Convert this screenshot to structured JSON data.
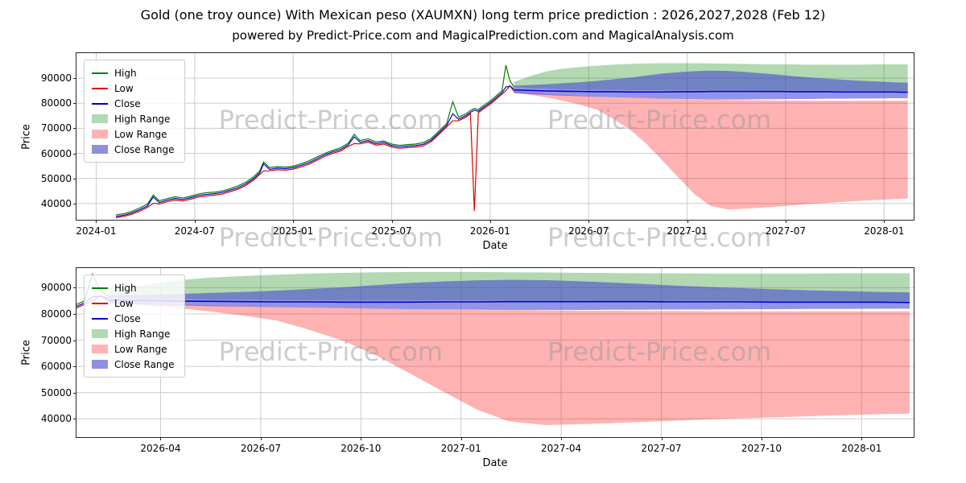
{
  "header": {
    "title": "Gold (one troy ounce) With Mexican peso (XAUMXN) long term price prediction : 2026,2027,2028 (Feb 12)",
    "subtitle": "powered by Predict-Price.com and MagicalPrediction.com and MagicalAnalysis.com"
  },
  "watermark": "Predict-Price.com",
  "chart_data": {
    "type": "line",
    "legend": [
      {
        "label": "High",
        "swatch": "line",
        "color": "#008000"
      },
      {
        "label": "Low",
        "swatch": "line",
        "color": "#dd0000"
      },
      {
        "label": "Close",
        "swatch": "line",
        "color": "#0000cc"
      },
      {
        "label": "High Range",
        "swatch": "patch",
        "color": "#b2d9b2"
      },
      {
        "label": "Low Range",
        "swatch": "patch",
        "color": "#ffb2b2"
      },
      {
        "label": "Close Range",
        "swatch": "patch",
        "color": "#8f8fe0"
      }
    ],
    "colors": {
      "high_line": "#008000",
      "low_line": "#dd0000",
      "close_line": "#0000cc",
      "high_band": "rgba(0,128,0,0.3)",
      "low_band": "rgba(255,0,0,0.3)",
      "close_band": "rgba(60,60,210,0.55)",
      "grid": "#cccccc",
      "axis": "#262626"
    },
    "history": {
      "t": [
        2024.1,
        2024.14,
        2024.18,
        2024.22,
        2024.26,
        2024.29,
        2024.32,
        2024.36,
        2024.4,
        2024.44,
        2024.48,
        2024.52,
        2024.56,
        2024.6,
        2024.64,
        2024.68,
        2024.72,
        2024.76,
        2024.8,
        2024.83,
        2024.85,
        2024.88,
        2024.92,
        2024.96,
        2025.0,
        2025.04,
        2025.08,
        2025.12,
        2025.16,
        2025.2,
        2025.24,
        2025.28,
        2025.31,
        2025.34,
        2025.38,
        2025.42,
        2025.46,
        2025.5,
        2025.54,
        2025.58,
        2025.62,
        2025.66,
        2025.7,
        2025.74,
        2025.78,
        2025.81,
        2025.84,
        2025.88,
        2025.9,
        2025.92,
        2025.94,
        2025.97,
        2026.0,
        2026.03,
        2026.06,
        2026.08,
        2026.1,
        2026.12
      ],
      "high": [
        35400,
        35900,
        36800,
        38200,
        39700,
        43400,
        41100,
        41900,
        42700,
        42200,
        42900,
        43800,
        44300,
        44500,
        45000,
        45900,
        47000,
        48500,
        50700,
        52900,
        56600,
        54300,
        54700,
        54500,
        54900,
        55800,
        57000,
        58500,
        60000,
        61200,
        62200,
        64100,
        67600,
        65100,
        65800,
        64600,
        64900,
        63700,
        63200,
        63500,
        63700,
        64300,
        65900,
        68900,
        72000,
        80600,
        74400,
        75900,
        77100,
        77900,
        77500,
        79300,
        80900,
        82900,
        85000,
        95200,
        89100,
        86600
      ],
      "low": [
        34300,
        34800,
        35700,
        36900,
        38400,
        40100,
        39800,
        40700,
        41400,
        41000,
        41700,
        42600,
        43000,
        43300,
        43800,
        44700,
        45700,
        47200,
        49400,
        51600,
        53000,
        53000,
        53500,
        53300,
        53700,
        54600,
        55700,
        57200,
        58800,
        60000,
        60900,
        62800,
        63900,
        63800,
        64500,
        63300,
        63700,
        62500,
        62000,
        62300,
        62500,
        63000,
        64600,
        67600,
        70600,
        73000,
        73000,
        74600,
        75800,
        37000,
        76200,
        78000,
        79600,
        81600,
        83600,
        85000,
        87000,
        84900
      ],
      "close": [
        34800,
        35300,
        36200,
        37500,
        39000,
        42600,
        40400,
        41300,
        42000,
        41600,
        42300,
        43200,
        43600,
        43900,
        44400,
        45300,
        46300,
        47800,
        50000,
        52200,
        55800,
        53600,
        54100,
        53900,
        54300,
        55200,
        56300,
        57800,
        59400,
        60600,
        61500,
        63400,
        66600,
        64400,
        65100,
        63900,
        64300,
        63100,
        62600,
        62900,
        63100,
        63600,
        65200,
        68200,
        71200,
        75800,
        73600,
        75200,
        76400,
        77200,
        76800,
        78600,
        80200,
        82200,
        84200,
        86500,
        86800,
        85800
      ]
    },
    "forecast": {
      "t": [
        2026.12,
        2026.21,
        2026.29,
        2026.37,
        2026.46,
        2026.54,
        2026.62,
        2026.71,
        2026.79,
        2026.87,
        2026.96,
        2027.04,
        2027.12,
        2027.21,
        2027.29,
        2027.37,
        2027.46,
        2027.54,
        2027.62,
        2027.71,
        2027.79,
        2027.87,
        2027.96,
        2028.04,
        2028.12
      ],
      "high_top": [
        88500,
        91000,
        92800,
        93800,
        94500,
        95000,
        95400,
        95700,
        95900,
        96000,
        96000,
        96000,
        95900,
        95800,
        95700,
        95600,
        95500,
        95500,
        95400,
        95400,
        95400,
        95400,
        95500,
        95500,
        95500
      ],
      "high_bottom": [
        86500,
        86000,
        85700,
        85500,
        85400,
        85300,
        85300,
        85200,
        85200,
        85200,
        85200,
        85200,
        85100,
        85100,
        85100,
        85000,
        85000,
        85000,
        85000,
        85000,
        85000,
        85000,
        85000,
        84900,
        84900
      ],
      "close_top": [
        87000,
        87300,
        87600,
        88000,
        88400,
        88900,
        89500,
        90200,
        91000,
        91800,
        92400,
        92800,
        93000,
        92900,
        92500,
        92000,
        91400,
        90800,
        90300,
        89800,
        89400,
        89000,
        88700,
        88400,
        88200
      ],
      "close_bottom": [
        84000,
        83600,
        83300,
        83000,
        82800,
        82600,
        82400,
        82200,
        82000,
        81800,
        81700,
        81600,
        81500,
        81500,
        81500,
        81600,
        81600,
        81700,
        81700,
        81800,
        81800,
        81900,
        81900,
        82000,
        82000
      ],
      "close_line": [
        85300,
        85100,
        84900,
        84800,
        84700,
        84600,
        84600,
        84500,
        84500,
        84500,
        84600,
        84600,
        84700,
        84700,
        84700,
        84700,
        84700,
        84600,
        84600,
        84600,
        84500,
        84500,
        84500,
        84500,
        84400
      ],
      "low_top": [
        84800,
        84200,
        83700,
        83300,
        83000,
        82700,
        82400,
        82200,
        82000,
        81800,
        81600,
        81500,
        81400,
        81300,
        81200,
        81200,
        81100,
        81100,
        81000,
        81000,
        81000,
        81000,
        81000,
        81000,
        81000
      ],
      "low_bottom": [
        84200,
        83300,
        82300,
        81000,
        79300,
        77500,
        74000,
        69500,
        64000,
        57500,
        50000,
        43500,
        39000,
        37600,
        37900,
        38300,
        38800,
        39300,
        39800,
        40200,
        40600,
        41000,
        41400,
        41700,
        42000
      ]
    },
    "charts": [
      {
        "name": "full-history-and-prediction",
        "xlabel": "Date",
        "ylabel": "Price",
        "x_domain": [
          2023.9,
          2028.15
        ],
        "y_domain": [
          33500,
          100000
        ],
        "x_ticks": [
          {
            "v": 2024.0,
            "label": "2024-01"
          },
          {
            "v": 2024.5,
            "label": "2024-07"
          },
          {
            "v": 2025.0,
            "label": "2025-01"
          },
          {
            "v": 2025.5,
            "label": "2025-07"
          },
          {
            "v": 2026.0,
            "label": "2026-01"
          },
          {
            "v": 2026.5,
            "label": "2026-07"
          },
          {
            "v": 2027.0,
            "label": "2027-01"
          },
          {
            "v": 2027.5,
            "label": "2027-07"
          },
          {
            "v": 2028.0,
            "label": "2028-01"
          }
        ],
        "y_ticks": [
          40000,
          50000,
          60000,
          70000,
          80000,
          90000
        ]
      },
      {
        "name": "prediction-zoom",
        "xlabel": "Date",
        "ylabel": "Price",
        "x_domain": [
          2026.04,
          2028.13
        ],
        "y_domain": [
          33000,
          97500
        ],
        "x_ticks": [
          {
            "v": 2026.25,
            "label": "2026-04"
          },
          {
            "v": 2026.5,
            "label": "2026-07"
          },
          {
            "v": 2026.75,
            "label": "2026-10"
          },
          {
            "v": 2027.0,
            "label": "2027-01"
          },
          {
            "v": 2027.25,
            "label": "2027-04"
          },
          {
            "v": 2027.5,
            "label": "2027-07"
          },
          {
            "v": 2027.75,
            "label": "2027-10"
          },
          {
            "v": 2028.0,
            "label": "2028-01"
          }
        ],
        "y_ticks": [
          40000,
          50000,
          60000,
          70000,
          80000,
          90000
        ]
      }
    ]
  }
}
